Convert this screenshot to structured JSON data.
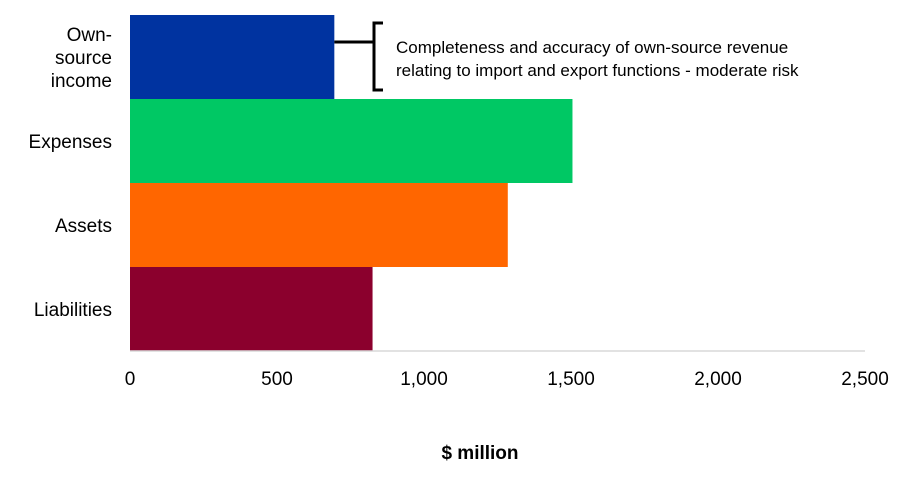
{
  "chart_data": {
    "type": "bar",
    "orientation": "horizontal",
    "categories": [
      "Own-source income",
      "Expenses",
      "Assets",
      "Liabilities"
    ],
    "values": [
      695,
      1505,
      1285,
      825
    ],
    "colors": [
      "#0033a0",
      "#00c864",
      "#ff6600",
      "#8b002d"
    ],
    "xlabel": "$ million",
    "xlim": [
      0,
      2500
    ],
    "xticks": [
      "0",
      "500",
      "1,000",
      "1,500",
      "2,000",
      "2,500"
    ],
    "xtick_values": [
      0,
      500,
      1000,
      1500,
      2000,
      2500
    ],
    "grid": false,
    "annotation": {
      "category": "Own-source income",
      "lines": [
        "Completeness and accuracy of own-source revenue",
        "relating to import and export functions - moderate risk"
      ]
    }
  }
}
